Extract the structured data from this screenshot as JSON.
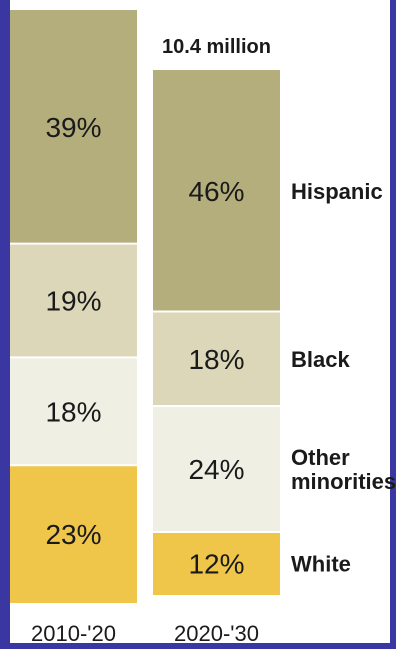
{
  "chart_data": {
    "type": "bar",
    "stacked": true,
    "total_label": "10.4 million",
    "categories": [
      "2010-'20",
      "2020-'30"
    ],
    "series": [
      {
        "name": "White",
        "values": [
          23,
          12
        ],
        "labels": [
          "23%",
          "12%"
        ],
        "color": "#efc64a"
      },
      {
        "name": "Other minorities",
        "values": [
          18,
          24
        ],
        "labels": [
          "18%",
          "24%"
        ],
        "color": "#f0efe4"
      },
      {
        "name": "Black",
        "values": [
          19,
          18
        ],
        "labels": [
          "19%",
          "18%"
        ],
        "color": "#dbd7b8"
      },
      {
        "name": "Hispanic",
        "values": [
          39,
          46
        ],
        "labels": [
          "39%",
          "46%"
        ],
        "color": "#b4ae7c"
      }
    ],
    "legend_placement": "right",
    "grid": false
  },
  "colors": {
    "accent_border": "#3a37a3",
    "text": "#1a1a1a"
  }
}
